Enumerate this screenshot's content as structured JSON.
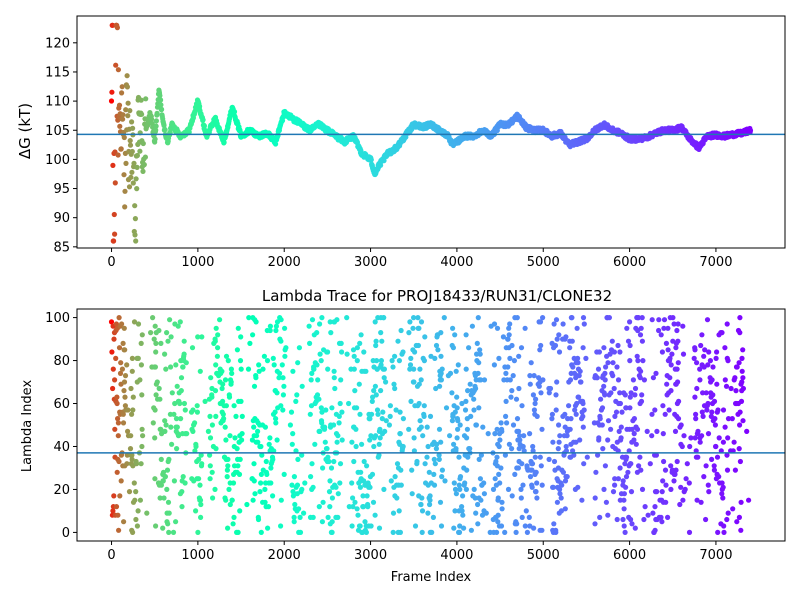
{
  "chart_data": [
    {
      "type": "scatter",
      "title": "",
      "xlabel": "",
      "ylabel": "ΔG (kT)",
      "xlim": [
        -400,
        7800
      ],
      "ylim": [
        84.8,
        124.6
      ],
      "xticks": [
        0,
        1000,
        2000,
        3000,
        4000,
        5000,
        6000,
        7000
      ],
      "yticks": [
        85,
        90,
        95,
        100,
        105,
        110,
        115,
        120
      ],
      "hline": 104.3,
      "hline_color": "#1f77b4",
      "colormap": "rainbow (reversed: early frames red, late frames violet)",
      "x_max": 7400,
      "series": [
        {
          "trace_anchors": [
            [
              0,
              110
            ],
            [
              10,
              123
            ],
            [
              20,
              86
            ],
            [
              30,
              100
            ],
            [
              40,
              97
            ],
            [
              50,
              121
            ],
            [
              60,
              117
            ],
            [
              80,
              112
            ],
            [
              100,
              106
            ],
            [
              120,
              108
            ],
            [
              150,
              98
            ],
            [
              180,
              110
            ],
            [
              200,
              100
            ],
            [
              230,
              104
            ],
            [
              260,
              93
            ],
            [
              280,
              87
            ],
            [
              300,
              104
            ],
            [
              330,
              107
            ],
            [
              360,
              102
            ],
            [
              400,
              105
            ],
            [
              450,
              108
            ],
            [
              500,
              103
            ],
            [
              550,
              112
            ],
            [
              600,
              106
            ],
            [
              650,
              103
            ],
            [
              700,
              106
            ],
            [
              800,
              104
            ],
            [
              900,
              105
            ],
            [
              1000,
              110
            ],
            [
              1100,
              104
            ],
            [
              1200,
              107
            ],
            [
              1300,
              103
            ],
            [
              1400,
              109
            ],
            [
              1500,
              104
            ],
            [
              1600,
              105
            ],
            [
              1700,
              104
            ],
            [
              1800,
              104.5
            ],
            [
              1900,
              103
            ],
            [
              2000,
              108
            ],
            [
              2100,
              107
            ],
            [
              2200,
              106
            ],
            [
              2300,
              105
            ],
            [
              2400,
              106
            ],
            [
              2500,
              105
            ],
            [
              2600,
              104
            ],
            [
              2700,
              103
            ],
            [
              2800,
              104
            ],
            [
              2900,
              101
            ],
            [
              3000,
              100
            ],
            [
              3050,
              97.5
            ],
            [
              3100,
              99
            ],
            [
              3200,
              101
            ],
            [
              3300,
              102
            ],
            [
              3400,
              104
            ],
            [
              3500,
              106
            ],
            [
              3600,
              105.5
            ],
            [
              3700,
              106
            ],
            [
              3800,
              105
            ],
            [
              3900,
              104
            ],
            [
              3950,
              102.5
            ],
            [
              4000,
              103
            ],
            [
              4100,
              104
            ],
            [
              4200,
              104
            ],
            [
              4300,
              105
            ],
            [
              4400,
              104
            ],
            [
              4500,
              106
            ],
            [
              4600,
              106
            ],
            [
              4700,
              107.5
            ],
            [
              4800,
              105.5
            ],
            [
              4900,
              105
            ],
            [
              5000,
              105
            ],
            [
              5100,
              104
            ],
            [
              5200,
              104.5
            ],
            [
              5300,
              102.5
            ],
            [
              5400,
              103
            ],
            [
              5500,
              103.5
            ],
            [
              5600,
              105
            ],
            [
              5700,
              106
            ],
            [
              5800,
              105
            ],
            [
              5900,
              104.5
            ],
            [
              6000,
              103.5
            ],
            [
              6100,
              103.5
            ],
            [
              6200,
              103.8
            ],
            [
              6300,
              104.5
            ],
            [
              6400,
              105
            ],
            [
              6500,
              105
            ],
            [
              6600,
              105.5
            ],
            [
              6700,
              103.5
            ],
            [
              6800,
              102
            ],
            [
              6850,
              103
            ],
            [
              6900,
              104
            ],
            [
              7000,
              104.2
            ],
            [
              7100,
              104
            ],
            [
              7200,
              104.3
            ],
            [
              7300,
              104.5
            ],
            [
              7400,
              105
            ]
          ]
        }
      ]
    },
    {
      "type": "scatter",
      "title": "Lambda Trace for PROJ18433/RUN31/CLONE32",
      "xlabel": "Frame Index",
      "ylabel": "Lambda Index",
      "xlim": [
        -400,
        7800
      ],
      "ylim": [
        -4,
        104
      ],
      "xticks": [
        0,
        1000,
        2000,
        3000,
        4000,
        5000,
        6000,
        7000
      ],
      "yticks": [
        0,
        20,
        40,
        60,
        80,
        100
      ],
      "hline": 37,
      "hline_color": "#1f77b4",
      "colormap": "rainbow (reversed: early frames red, late frames violet)",
      "x_max": 7400,
      "y_range": [
        0,
        100
      ]
    }
  ]
}
